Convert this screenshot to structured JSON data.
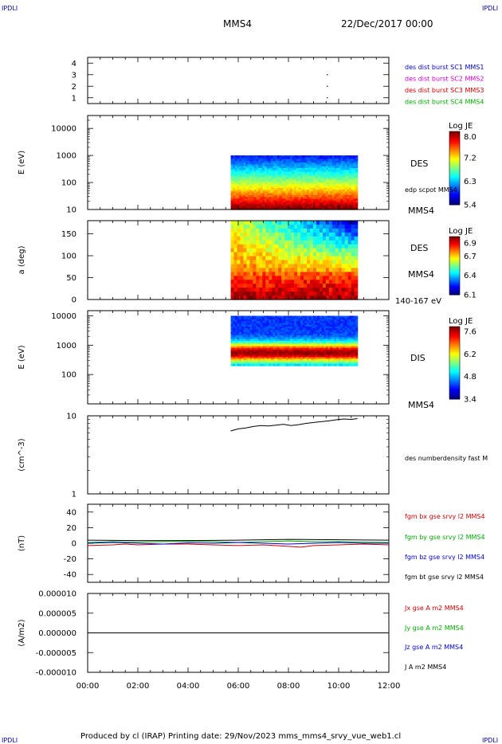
{
  "corner_label": "IPDLI",
  "header": {
    "spacecraft": "MMS4",
    "date": "22/Dec/2017 00:00"
  },
  "footer": {
    "text": "Produced by cl (IRAP)   Printing date: 29/Nov/2023   mms_mms4_srvy_vue_web1.cl"
  },
  "colors": {
    "mms1": "#0000cc",
    "mms2": "#cc00cc",
    "mms3": "#cc0000",
    "mms4": "#00aa00",
    "bx": "#cc0000",
    "by": "#00aa00",
    "bz": "#0000cc",
    "bt": "#000000"
  },
  "chart_data": [
    {
      "type": "scatter",
      "ylim": [
        0.5,
        4.5
      ],
      "yticks": [
        "1",
        "2",
        "3",
        "4"
      ],
      "legend_placement": "right",
      "series": [
        {
          "name": "des dist burst SC1 MMS1",
          "color": "#0000cc"
        },
        {
          "name": "des dist burst SC2 MMS2",
          "color": "#cc00cc"
        },
        {
          "name": "des dist burst SC3 MMS3",
          "color": "#cc0000"
        },
        {
          "name": "des dist burst SC4 MMS4",
          "color": "#00aa00"
        }
      ],
      "points": [
        {
          "x": 9.55,
          "y": 3.0
        },
        {
          "x": 9.55,
          "y": 2.0
        },
        {
          "x": 9.55,
          "y": 1.0
        }
      ]
    },
    {
      "type": "heatmap",
      "ylabel": "E (eV)",
      "yscale": "log",
      "ylim": [
        10,
        30000
      ],
      "yticks": [
        "10",
        "100",
        "1000",
        "10000"
      ],
      "data_interval_hours": [
        5.7,
        10.75
      ],
      "data_yrange": [
        10,
        1000
      ],
      "instrument": "DES",
      "line_label": "edp scpot MMS4",
      "bottom_label": "MMS4",
      "colorbar": {
        "title": "Log JE",
        "ticks": [
          "8.0",
          "7.2",
          "6.3",
          "5.4"
        ],
        "range": [
          5.4,
          8.2
        ]
      }
    },
    {
      "type": "heatmap",
      "ylabel": "a (deg)",
      "ylim": [
        0,
        180
      ],
      "yticks": [
        "0",
        "50",
        "100",
        "150"
      ],
      "data_interval_hours": [
        5.7,
        10.75
      ],
      "instrument": "DES",
      "spacecraft_label": "MMS4",
      "energy_label": "140-167 eV",
      "colorbar": {
        "title": "Log JE",
        "ticks": [
          "6.9",
          "6.7",
          "6.4",
          "6.1"
        ],
        "range": [
          6.1,
          7.0
        ]
      }
    },
    {
      "type": "heatmap",
      "ylabel": "E (eV)",
      "yscale": "log",
      "ylim": [
        10,
        15000
      ],
      "yticks": [
        "100",
        "1000",
        "10000"
      ],
      "data_interval_hours": [
        5.7,
        10.75
      ],
      "data_yrange": [
        200,
        10000
      ],
      "instrument": "DIS",
      "bottom_label": "MMS4",
      "colorbar": {
        "title": "Log JE",
        "ticks": [
          "7.6",
          "6.2",
          "4.8",
          "3.4"
        ],
        "range": [
          3.4,
          7.9
        ]
      }
    },
    {
      "type": "line",
      "ylabel": "(cm^-3)",
      "yscale": "log",
      "ylim": [
        1,
        10
      ],
      "yticks": [
        "1",
        "10"
      ],
      "legend_placement": "right",
      "series": [
        {
          "name": "des numberdensity fast M",
          "color": "#000000",
          "x": [
            5.7,
            6.0,
            6.3,
            6.6,
            6.9,
            7.2,
            7.5,
            7.8,
            8.1,
            8.4,
            8.7,
            9.0,
            9.3,
            9.6,
            9.9,
            10.2,
            10.5,
            10.75
          ],
          "y": [
            6.4,
            6.8,
            7.0,
            7.3,
            7.5,
            7.4,
            7.6,
            7.8,
            7.5,
            7.7,
            8.0,
            8.2,
            8.4,
            8.6,
            8.9,
            9.1,
            9.0,
            9.2
          ]
        }
      ]
    },
    {
      "type": "line",
      "ylabel": "(nT)",
      "ylim": [
        -50,
        50
      ],
      "yticks": [
        "-40",
        "-20",
        "0",
        "20",
        "40"
      ],
      "legend_placement": "right",
      "series": [
        {
          "name": "fgm bx gse srvy l2 MMS4",
          "color": "#cc0000",
          "x": [
            0,
            1,
            1.5,
            2,
            3,
            4,
            5,
            6,
            7,
            8,
            8.5,
            9,
            10,
            11,
            12
          ],
          "y": [
            -3,
            -2,
            -1,
            -2,
            -1,
            -1,
            -2,
            -3,
            -2,
            -4,
            -5,
            -3,
            -2,
            -1,
            -2
          ]
        },
        {
          "name": "fgm by gse srvy l2 MMS4",
          "color": "#00aa00",
          "x": [
            0,
            1,
            2,
            3,
            4,
            5,
            6,
            7,
            8,
            9,
            10,
            11,
            12
          ],
          "y": [
            1,
            2,
            1.5,
            2,
            2.5,
            2,
            1,
            2,
            3,
            2,
            2,
            1.5,
            1
          ]
        },
        {
          "name": "fgm bz gse srvy l2 MMS4",
          "color": "#0000cc",
          "x": [
            0,
            1,
            2,
            3,
            4,
            5,
            6,
            7,
            8,
            9,
            10,
            11,
            12
          ],
          "y": [
            0,
            1,
            0,
            -1,
            0.5,
            0,
            1,
            0,
            -1,
            0,
            1,
            0,
            0
          ]
        },
        {
          "name": "fgm bt gse srvy l2 MMS4",
          "color": "#000000",
          "x": [
            0,
            2,
            4,
            6,
            8,
            10,
            12
          ],
          "y": [
            4,
            3.5,
            3.5,
            4,
            5,
            4.5,
            4
          ]
        }
      ]
    },
    {
      "type": "line",
      "ylabel": "(A/m2)",
      "ylim": [
        -1e-05,
        1e-05
      ],
      "yticks": [
        "-0.000010",
        "-0.000005",
        "0.000000",
        "0.000005",
        "0.000010"
      ],
      "xticks": [
        "00:00",
        "02:00",
        "04:00",
        "06:00",
        "08:00",
        "10:00",
        "12:00"
      ],
      "xlim": [
        0,
        12
      ],
      "legend_placement": "right",
      "series": [
        {
          "name": "Jx gse A m2 MMS4",
          "color": "#cc0000"
        },
        {
          "name": "Jy gse A m2 MMS4",
          "color": "#00aa00"
        },
        {
          "name": "Jz gse A m2 MMS4",
          "color": "#0000cc"
        },
        {
          "name": "J A m2 MMS4",
          "color": "#000000",
          "x": [
            0,
            12
          ],
          "y": [
            0,
            0
          ]
        }
      ]
    }
  ]
}
